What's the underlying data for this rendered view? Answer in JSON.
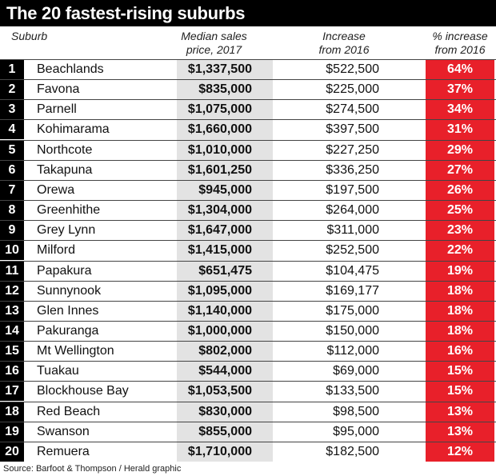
{
  "title": "The 20 fastest-rising suburbs",
  "headers": {
    "suburb": "Suburb",
    "price_1": "Median sales",
    "price_2": "price, 2017",
    "inc_1": "Increase",
    "inc_2": "from 2016",
    "pct_1": "% increase",
    "pct_2": "from 2016"
  },
  "source": "Source: Barfoot & Thompson / Herald graphic",
  "colors": {
    "accent": "#e8202a",
    "header": "#000000",
    "price_band": "#e3e3e3"
  },
  "chart_data": {
    "type": "table",
    "title": "The 20 fastest-rising suburbs",
    "columns": [
      "Suburb",
      "Median sales price, 2017",
      "Increase from 2016",
      "% increase from 2016"
    ],
    "rows": [
      {
        "rank": "1",
        "suburb": "Beachlands",
        "price": "$1,337,500",
        "increase": "$522,500",
        "pct": "64%"
      },
      {
        "rank": "2",
        "suburb": "Favona",
        "price": "$835,000",
        "increase": "$225,000",
        "pct": "37%"
      },
      {
        "rank": "3",
        "suburb": "Parnell",
        "price": "$1,075,000",
        "increase": "$274,500",
        "pct": "34%"
      },
      {
        "rank": "4",
        "suburb": "Kohimarama",
        "price": "$1,660,000",
        "increase": "$397,500",
        "pct": "31%"
      },
      {
        "rank": "5",
        "suburb": "Northcote",
        "price": "$1,010,000",
        "increase": "$227,250",
        "pct": "29%"
      },
      {
        "rank": "6",
        "suburb": "Takapuna",
        "price": "$1,601,250",
        "increase": "$336,250",
        "pct": "27%"
      },
      {
        "rank": "7",
        "suburb": "Orewa",
        "price": "$945,000",
        "increase": "$197,500",
        "pct": "26%"
      },
      {
        "rank": "8",
        "suburb": "Greenhithe",
        "price": "$1,304,000",
        "increase": "$264,000",
        "pct": "25%"
      },
      {
        "rank": "9",
        "suburb": "Grey Lynn",
        "price": "$1,647,000",
        "increase": "$311,000",
        "pct": "23%"
      },
      {
        "rank": "10",
        "suburb": "Milford",
        "price": "$1,415,000",
        "increase": "$252,500",
        "pct": "22%"
      },
      {
        "rank": "11",
        "suburb": "Papakura",
        "price": "$651,475",
        "increase": "$104,475",
        "pct": "19%"
      },
      {
        "rank": "12",
        "suburb": "Sunnynook",
        "price": "$1,095,000",
        "increase": "$169,177",
        "pct": "18%"
      },
      {
        "rank": "13",
        "suburb": "Glen Innes",
        "price": "$1,140,000",
        "increase": "$175,000",
        "pct": "18%"
      },
      {
        "rank": "14",
        "suburb": "Pakuranga",
        "price": "$1,000,000",
        "increase": "$150,000",
        "pct": "18%"
      },
      {
        "rank": "15",
        "suburb": "Mt Wellington",
        "price": "$802,000",
        "increase": "$112,000",
        "pct": "16%"
      },
      {
        "rank": "16",
        "suburb": "Tuakau",
        "price": "$544,000",
        "increase": "$69,000",
        "pct": "15%"
      },
      {
        "rank": "17",
        "suburb": "Blockhouse Bay",
        "price": "$1,053,500",
        "increase": "$133,500",
        "pct": "15%"
      },
      {
        "rank": "18",
        "suburb": "Red Beach",
        "price": "$830,000",
        "increase": "$98,500",
        "pct": "13%"
      },
      {
        "rank": "19",
        "suburb": "Swanson",
        "price": "$855,000",
        "increase": "$95,000",
        "pct": "13%"
      },
      {
        "rank": "20",
        "suburb": "Remuera",
        "price": "$1,710,000",
        "increase": "$182,500",
        "pct": "12%"
      }
    ]
  }
}
